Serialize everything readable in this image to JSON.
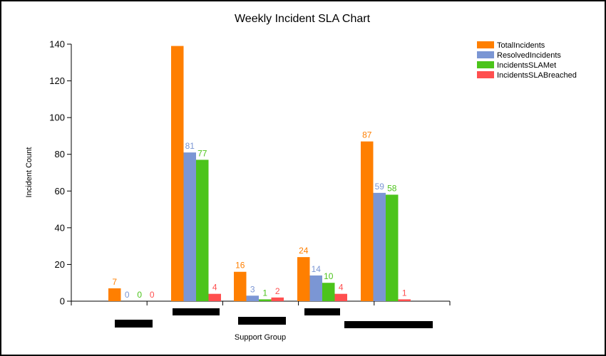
{
  "chart_data": {
    "type": "bar",
    "title": "Weekly Incident SLA Chart",
    "xlabel": "Support Group",
    "ylabel": "Incident Count",
    "ylim": [
      0,
      140
    ],
    "yticks": [
      "0",
      "20",
      "40",
      "60",
      "80",
      "100",
      "120",
      "140"
    ],
    "categories": [
      "",
      "",
      "",
      "",
      ""
    ],
    "series": [
      {
        "name": "TotalIncidents",
        "color": "#ff7f00",
        "values": [
          7,
          139,
          16,
          24,
          87
        ],
        "labels": [
          "7",
          "",
          "16",
          "24",
          "87"
        ]
      },
      {
        "name": "ResolvedIncidents",
        "color": "#7b96d4",
        "values": [
          0,
          81,
          3,
          14,
          59
        ],
        "labels": [
          "0",
          "81",
          "3",
          "14",
          "59"
        ]
      },
      {
        "name": "IncidentsSLAMet",
        "color": "#4cc41b",
        "values": [
          0,
          77,
          1,
          10,
          58
        ],
        "labels": [
          "0",
          "77",
          "1",
          "10",
          "58"
        ]
      },
      {
        "name": "IncidentsSLABreached",
        "color": "#ff4f4f",
        "values": [
          0,
          4,
          2,
          4,
          1
        ],
        "labels": [
          "0",
          "4",
          "2",
          "4",
          "1"
        ]
      }
    ],
    "legend_position": "top-right",
    "grid": false
  }
}
